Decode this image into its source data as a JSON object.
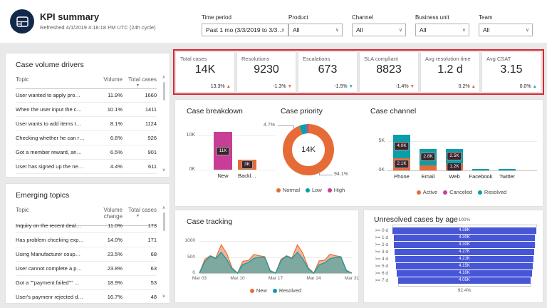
{
  "header": {
    "title": "KPI summary",
    "subtitle": "Refreshed 4/1/2019 4:18:18 PM UTC (24h cycle)"
  },
  "filters": [
    {
      "label": "Time period",
      "value": "Past 1 mo (3/3/2019 to 3/3…"
    },
    {
      "label": "Product",
      "value": "All"
    },
    {
      "label": "Channel",
      "value": "All"
    },
    {
      "label": "Business unit",
      "value": "All"
    },
    {
      "label": "Team",
      "value": "All"
    }
  ],
  "highlight_color": "#E0242E",
  "kpi_cards": [
    {
      "label": "Total cases",
      "value": "14K",
      "delta": "13.3%",
      "direction": "up",
      "delta_color": "#E2603C"
    },
    {
      "label": "Resolutions",
      "value": "9230",
      "delta": "-1.3%",
      "direction": "down",
      "delta_color": "#E2603C"
    },
    {
      "label": "Escalations",
      "value": "673",
      "delta": "-1.5%",
      "direction": "down",
      "delta_color": "#1BA6C4"
    },
    {
      "label": "SLA compliant",
      "value": "8823",
      "delta": "-1.4%",
      "direction": "down",
      "delta_color": "#E2603C"
    },
    {
      "label": "Avg resolution time",
      "value": "1.2 d",
      "delta": "0.2%",
      "direction": "up",
      "delta_color": "#E2603C"
    },
    {
      "label": "Avg CSAT",
      "value": "3.15",
      "delta": "0.0%",
      "direction": "up",
      "delta_color": "#1BA6C4"
    }
  ],
  "tables": [
    {
      "title": "Case volume drivers",
      "columns": [
        "Topic",
        "Volume",
        "Total cases"
      ],
      "rows": [
        [
          "User wanted to apply pro…",
          "11.9%",
          "1660"
        ],
        [
          "When the user input the c…",
          "10.1%",
          "1411"
        ],
        [
          "User wants to add items t…",
          "8.1%",
          "1124"
        ],
        [
          "Checking whether he can r…",
          "6.6%",
          "926"
        ],
        [
          "Got a member reward, an…",
          "6.5%",
          "901"
        ],
        [
          "User has signed up the ne…",
          "4.4%",
          "611"
        ]
      ]
    },
    {
      "title": "Emerging topics",
      "columns": [
        "Topic",
        "Volume change",
        "Total cases"
      ],
      "rows": [
        [
          "Inquiry on the recent deal…",
          "11.0%",
          "173"
        ],
        [
          "Has problem chceking exp…",
          "14.0%",
          "171"
        ],
        [
          "Using Manufacturer coup…",
          "23.5%",
          "68"
        ],
        [
          "User cannot complete a p…",
          "23.8%",
          "63"
        ],
        [
          "Got a \"\"payment failed\"\" …",
          "18.9%",
          "53"
        ],
        [
          "User's paymenr rejected d…",
          "16.7%",
          "48"
        ]
      ]
    }
  ],
  "chart_data": [
    {
      "id": "case_breakdown",
      "type": "bar",
      "title": "Case breakdown",
      "categories": [
        "New",
        "Backl…"
      ],
      "values": [
        11000,
        3000
      ],
      "value_labels": [
        "11K",
        "3K"
      ],
      "bar_colors": [
        "#C83D95",
        "#E66C37"
      ],
      "y_ticks": [
        "10K",
        "0K"
      ],
      "ylim": [
        0,
        12500
      ]
    },
    {
      "id": "case_priority",
      "type": "pie",
      "title": "Case priority",
      "center_label": "14K",
      "slices": [
        {
          "name": "Normal",
          "pct": 94.1,
          "color": "#E66C37"
        },
        {
          "name": "Low",
          "pct": 4.7,
          "color": "#0A9EA8"
        },
        {
          "name": "High",
          "pct": 1.2,
          "color": "#C83D95"
        }
      ],
      "callouts": [
        "4.7%",
        "94.1%"
      ],
      "legend_position": "bottom"
    },
    {
      "id": "case_channel",
      "type": "bar",
      "title": "Case channel",
      "categories": [
        "Phone",
        "Email",
        "Web",
        "Facebook",
        "Twitter"
      ],
      "series": [
        {
          "name": "Active",
          "color": "#E66C37",
          "values": [
            2100,
            900,
            1200,
            0,
            0
          ],
          "labels": [
            "2.1K",
            null,
            "1.2K",
            null,
            null
          ]
        },
        {
          "name": "Canceled",
          "color": "#C83D95",
          "values": [
            0,
            0,
            0,
            0,
            0
          ],
          "labels": [
            null,
            null,
            null,
            null,
            null
          ]
        },
        {
          "name": "Resolved",
          "color": "#0A9EA8",
          "values": [
            4000,
            2800,
            2500,
            250,
            250
          ],
          "labels": [
            "4.0K",
            "2.8K",
            "2.5K",
            null,
            null
          ]
        }
      ],
      "stacked": true,
      "y_ticks": [
        "5K",
        "0K"
      ],
      "ylim": [
        0,
        6200
      ]
    },
    {
      "id": "case_tracking",
      "type": "area",
      "title": "Case tracking",
      "x_ticks": [
        "Mar 03",
        "Mar 10",
        "Mar 17",
        "Mar 24",
        "Mar 31"
      ],
      "y_ticks": [
        "1000",
        "500",
        "0"
      ],
      "ylim": [
        0,
        1000
      ],
      "series": [
        {
          "name": "New",
          "color": "#E66C37",
          "values": [
            0,
            430,
            540,
            470,
            880,
            620,
            160,
            0,
            370,
            390,
            580,
            540,
            510,
            80,
            0,
            430,
            540,
            470,
            880,
            620,
            160,
            0,
            380,
            400,
            590,
            540,
            510,
            90,
            0
          ]
        },
        {
          "name": "Resolved",
          "color": "#0A9EA8",
          "values": [
            0,
            360,
            530,
            450,
            650,
            430,
            130,
            0,
            270,
            330,
            460,
            490,
            490,
            60,
            0,
            390,
            530,
            450,
            650,
            440,
            130,
            0,
            260,
            320,
            450,
            490,
            500,
            70,
            0
          ]
        }
      ]
    },
    {
      "id": "unresolved_by_age",
      "type": "bar",
      "subtype": "funnel",
      "title": "Unresolved cases by age",
      "categories": [
        ">= 0 d",
        ">= 1 d",
        ">= 2 d",
        ">= 3 d",
        ">= 4 d",
        ">= 5 d",
        ">= 6 d",
        ">= 7 d"
      ],
      "values": [
        4380,
        4300,
        4300,
        4270,
        4210,
        4150,
        4100,
        4050
      ],
      "value_labels": [
        "4.38K",
        "4.30K",
        "4.30K",
        "4.27K",
        "4.21K",
        "4.15K",
        "4.10K",
        "4.05K"
      ],
      "top_label": "100%",
      "bottom_label": "92.4%",
      "bar_color": "#4656D6"
    }
  ]
}
